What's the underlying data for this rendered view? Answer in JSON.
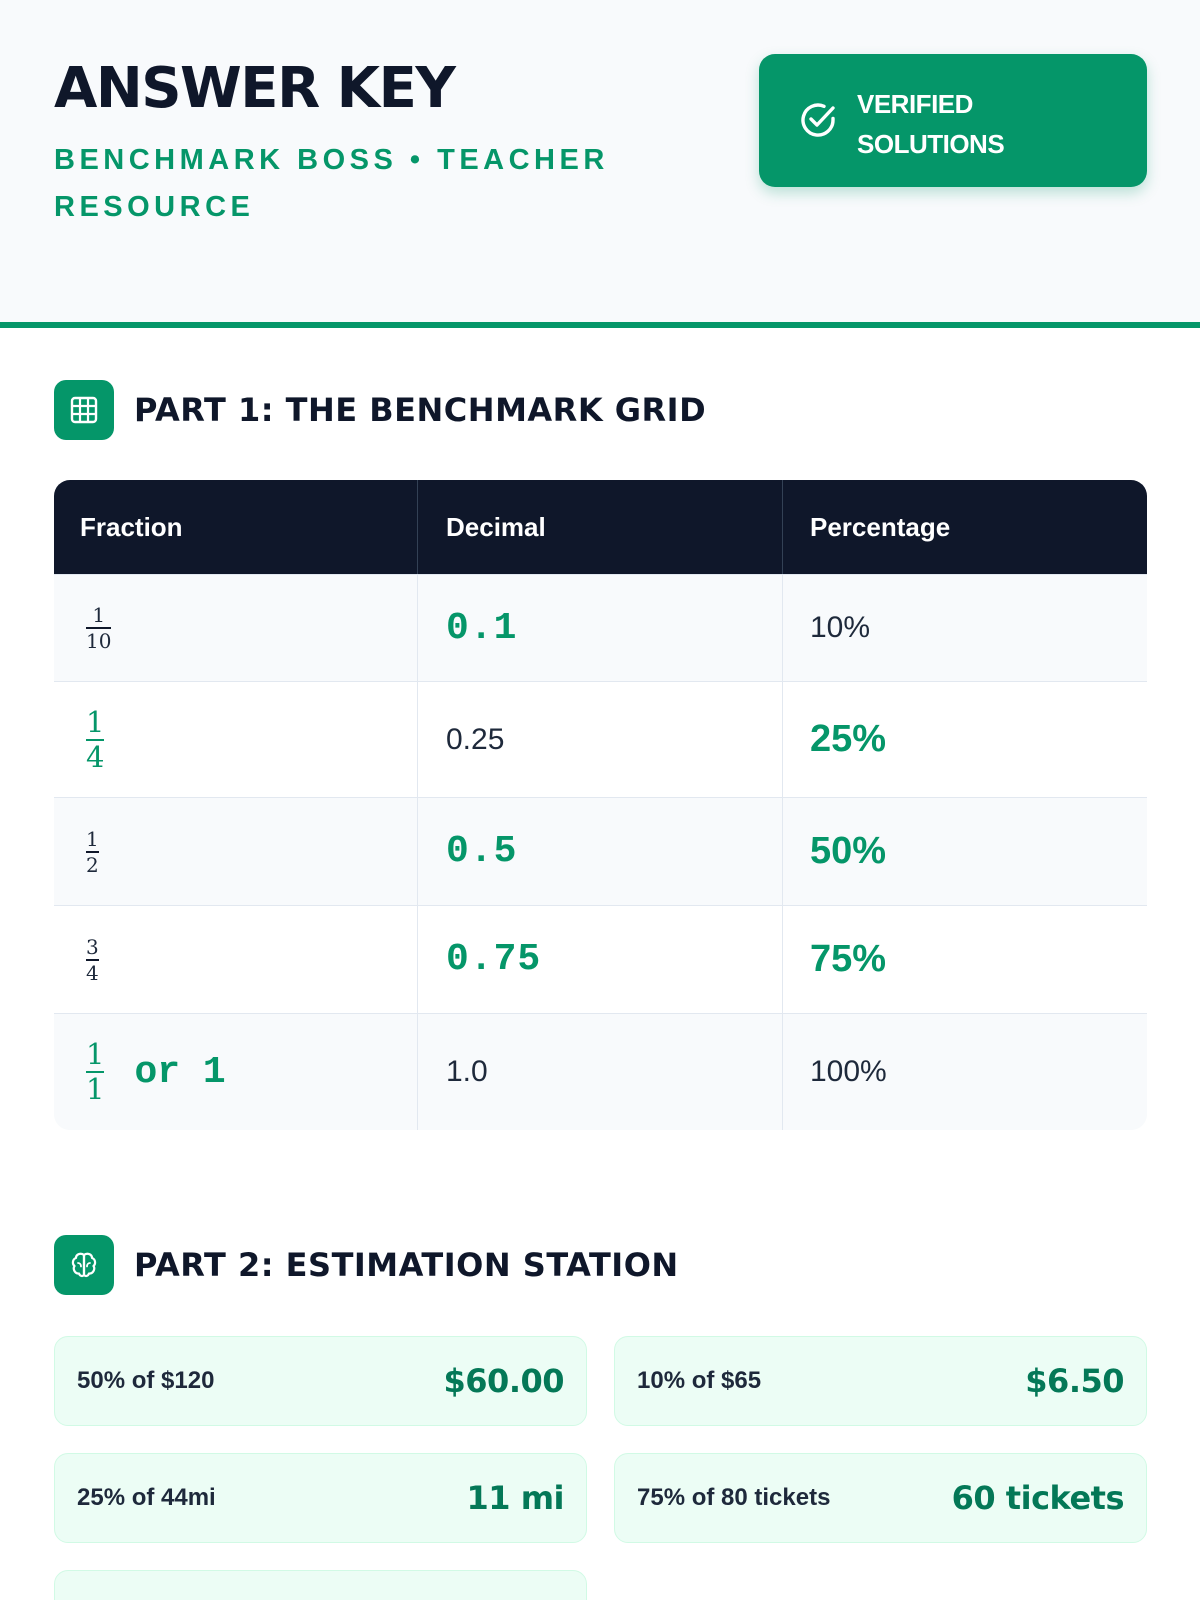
{
  "header": {
    "title": "ANSWER KEY",
    "subtitle": "BENCHMARK BOSS • TEACHER RESOURCE",
    "badge": {
      "icon": "check-circle-icon",
      "label_line1": "VERIFIED",
      "label_line2": "SOLUTIONS"
    }
  },
  "part1": {
    "icon": "grid-icon",
    "title": "PART 1: THE BENCHMARK GRID",
    "columns": [
      "Fraction",
      "Decimal",
      "Percentage"
    ],
    "rows": [
      {
        "fraction_num": "1",
        "fraction_den": "10",
        "decimal": "0.1",
        "percentage": "10%"
      },
      {
        "fraction_num": "1",
        "fraction_den": "4",
        "decimal": "0.25",
        "percentage": "25%"
      },
      {
        "fraction_num": "1",
        "fraction_den": "2",
        "decimal": "0.5",
        "percentage": "50%"
      },
      {
        "fraction_num": "3",
        "fraction_den": "4",
        "decimal": "0.75",
        "percentage": "75%"
      },
      {
        "fraction_num": "1",
        "fraction_den": "1",
        "fraction_suffix": "or 1",
        "decimal": "1.0",
        "percentage": "100%"
      }
    ]
  },
  "part2": {
    "icon": "brain-icon",
    "title": "PART 2: ESTIMATION STATION",
    "items": [
      {
        "question": "50% of $120",
        "answer": "$60.00"
      },
      {
        "question": "10% of $65",
        "answer": "$6.50"
      },
      {
        "question": "25% of 44mi",
        "answer": "11 mi"
      },
      {
        "question": "75% of 80 tickets",
        "answer": "60 tickets"
      }
    ]
  },
  "colors": {
    "accent": "#059669",
    "dark": "#0f172a",
    "card_bg": "#ecfdf5"
  }
}
